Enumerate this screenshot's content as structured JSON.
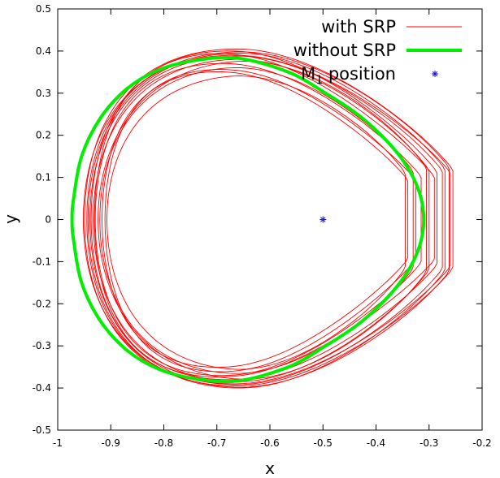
{
  "chart_data": {
    "type": "line",
    "title": "",
    "xlabel": "x",
    "ylabel": "y",
    "xlim": [
      -1,
      -0.2
    ],
    "ylim": [
      -0.5,
      0.5
    ],
    "x_ticks": [
      -1,
      -0.9,
      -0.8,
      -0.7,
      -0.6,
      -0.5,
      -0.4,
      -0.3,
      -0.2
    ],
    "x_tick_labels": [
      "-1",
      "-0.9",
      "-0.8",
      "-0.7",
      "-0.6",
      "-0.5",
      "-0.4",
      "-0.3",
      "-0.2"
    ],
    "y_ticks": [
      -0.5,
      -0.4,
      -0.3,
      -0.2,
      -0.1,
      0,
      0.1,
      0.2,
      0.3,
      0.4,
      0.5
    ],
    "y_tick_labels": [
      "-0.5",
      "-0.4",
      "-0.3",
      "-0.2",
      "-0.1",
      "0",
      "0.1",
      "0.2",
      "0.3",
      "0.4",
      "0.5"
    ],
    "grid": false,
    "legend_position": "top-right",
    "legend": {
      "with_srp": "with SRP",
      "without_srp": "without SRP",
      "m1_prefix": "M",
      "m1_sub": "1",
      "m1_suffix": " position"
    },
    "series": [
      {
        "name": "without SRP",
        "color": "#00ee00",
        "points": [
          [
            -0.31,
            0.0
          ],
          [
            -0.315,
            0.05
          ],
          [
            -0.33,
            0.1
          ],
          [
            -0.355,
            0.15
          ],
          [
            -0.39,
            0.2
          ],
          [
            -0.435,
            0.25
          ],
          [
            -0.495,
            0.3
          ],
          [
            -0.565,
            0.35
          ],
          [
            -0.66,
            0.383
          ],
          [
            -0.74,
            0.378
          ],
          [
            -0.81,
            0.355
          ],
          [
            -0.87,
            0.31
          ],
          [
            -0.92,
            0.24
          ],
          [
            -0.955,
            0.15
          ],
          [
            -0.97,
            0.05
          ],
          [
            -0.973,
            0.0
          ],
          [
            -0.97,
            -0.05
          ],
          [
            -0.955,
            -0.15
          ],
          [
            -0.92,
            -0.24
          ],
          [
            -0.87,
            -0.31
          ],
          [
            -0.81,
            -0.355
          ],
          [
            -0.74,
            -0.378
          ],
          [
            -0.66,
            -0.383
          ],
          [
            -0.565,
            -0.35
          ],
          [
            -0.495,
            -0.3
          ],
          [
            -0.435,
            -0.25
          ],
          [
            -0.39,
            -0.2
          ],
          [
            -0.355,
            -0.15
          ],
          [
            -0.33,
            -0.1
          ],
          [
            -0.315,
            -0.05
          ]
        ]
      },
      {
        "name": "with SRP",
        "color": "#ff0000",
        "orbits": [
          {
            "xmin": -0.99,
            "xmax": -0.255,
            "ytop": 0.405,
            "ybot": -0.395,
            "skew": 0.0
          },
          {
            "xmin": -0.982,
            "xmax": -0.27,
            "ytop": 0.395,
            "ybot": -0.4,
            "skew": 0.02
          },
          {
            "xmin": -0.975,
            "xmax": -0.285,
            "ytop": 0.4,
            "ybot": -0.38,
            "skew": -0.02
          },
          {
            "xmin": -0.97,
            "xmax": -0.3,
            "ytop": 0.38,
            "ybot": -0.385,
            "skew": 0.03
          },
          {
            "xmin": -0.965,
            "xmax": -0.315,
            "ytop": 0.37,
            "ybot": -0.37,
            "skew": -0.03
          },
          {
            "xmin": -0.955,
            "xmax": -0.33,
            "ytop": 0.36,
            "ybot": -0.365,
            "skew": 0.04
          },
          {
            "xmin": -0.95,
            "xmax": -0.34,
            "ytop": 0.35,
            "ybot": -0.35,
            "skew": -0.04
          },
          {
            "xmin": -0.94,
            "xmax": -0.345,
            "ytop": 0.34,
            "ybot": -0.355,
            "skew": 0.05
          },
          {
            "xmin": -0.985,
            "xmax": -0.26,
            "ytop": 0.39,
            "ybot": -0.39,
            "skew": -0.01
          },
          {
            "xmin": -0.978,
            "xmax": -0.275,
            "ytop": 0.388,
            "ybot": -0.392,
            "skew": 0.01
          },
          {
            "xmin": -0.96,
            "xmax": -0.305,
            "ytop": 0.375,
            "ybot": -0.378,
            "skew": 0.06
          },
          {
            "xmin": -0.945,
            "xmax": -0.325,
            "ytop": 0.355,
            "ybot": -0.36,
            "skew": -0.05
          },
          {
            "xmin": -0.992,
            "xmax": -0.262,
            "ytop": 0.398,
            "ybot": -0.398,
            "skew": 0.03
          },
          {
            "xmin": -0.968,
            "xmax": -0.29,
            "ytop": 0.392,
            "ybot": -0.372,
            "skew": -0.06
          }
        ]
      },
      {
        "name": "M1 position",
        "color": "#1f1fcf",
        "points": [
          [
            -0.5,
            0.0
          ]
        ]
      }
    ]
  }
}
